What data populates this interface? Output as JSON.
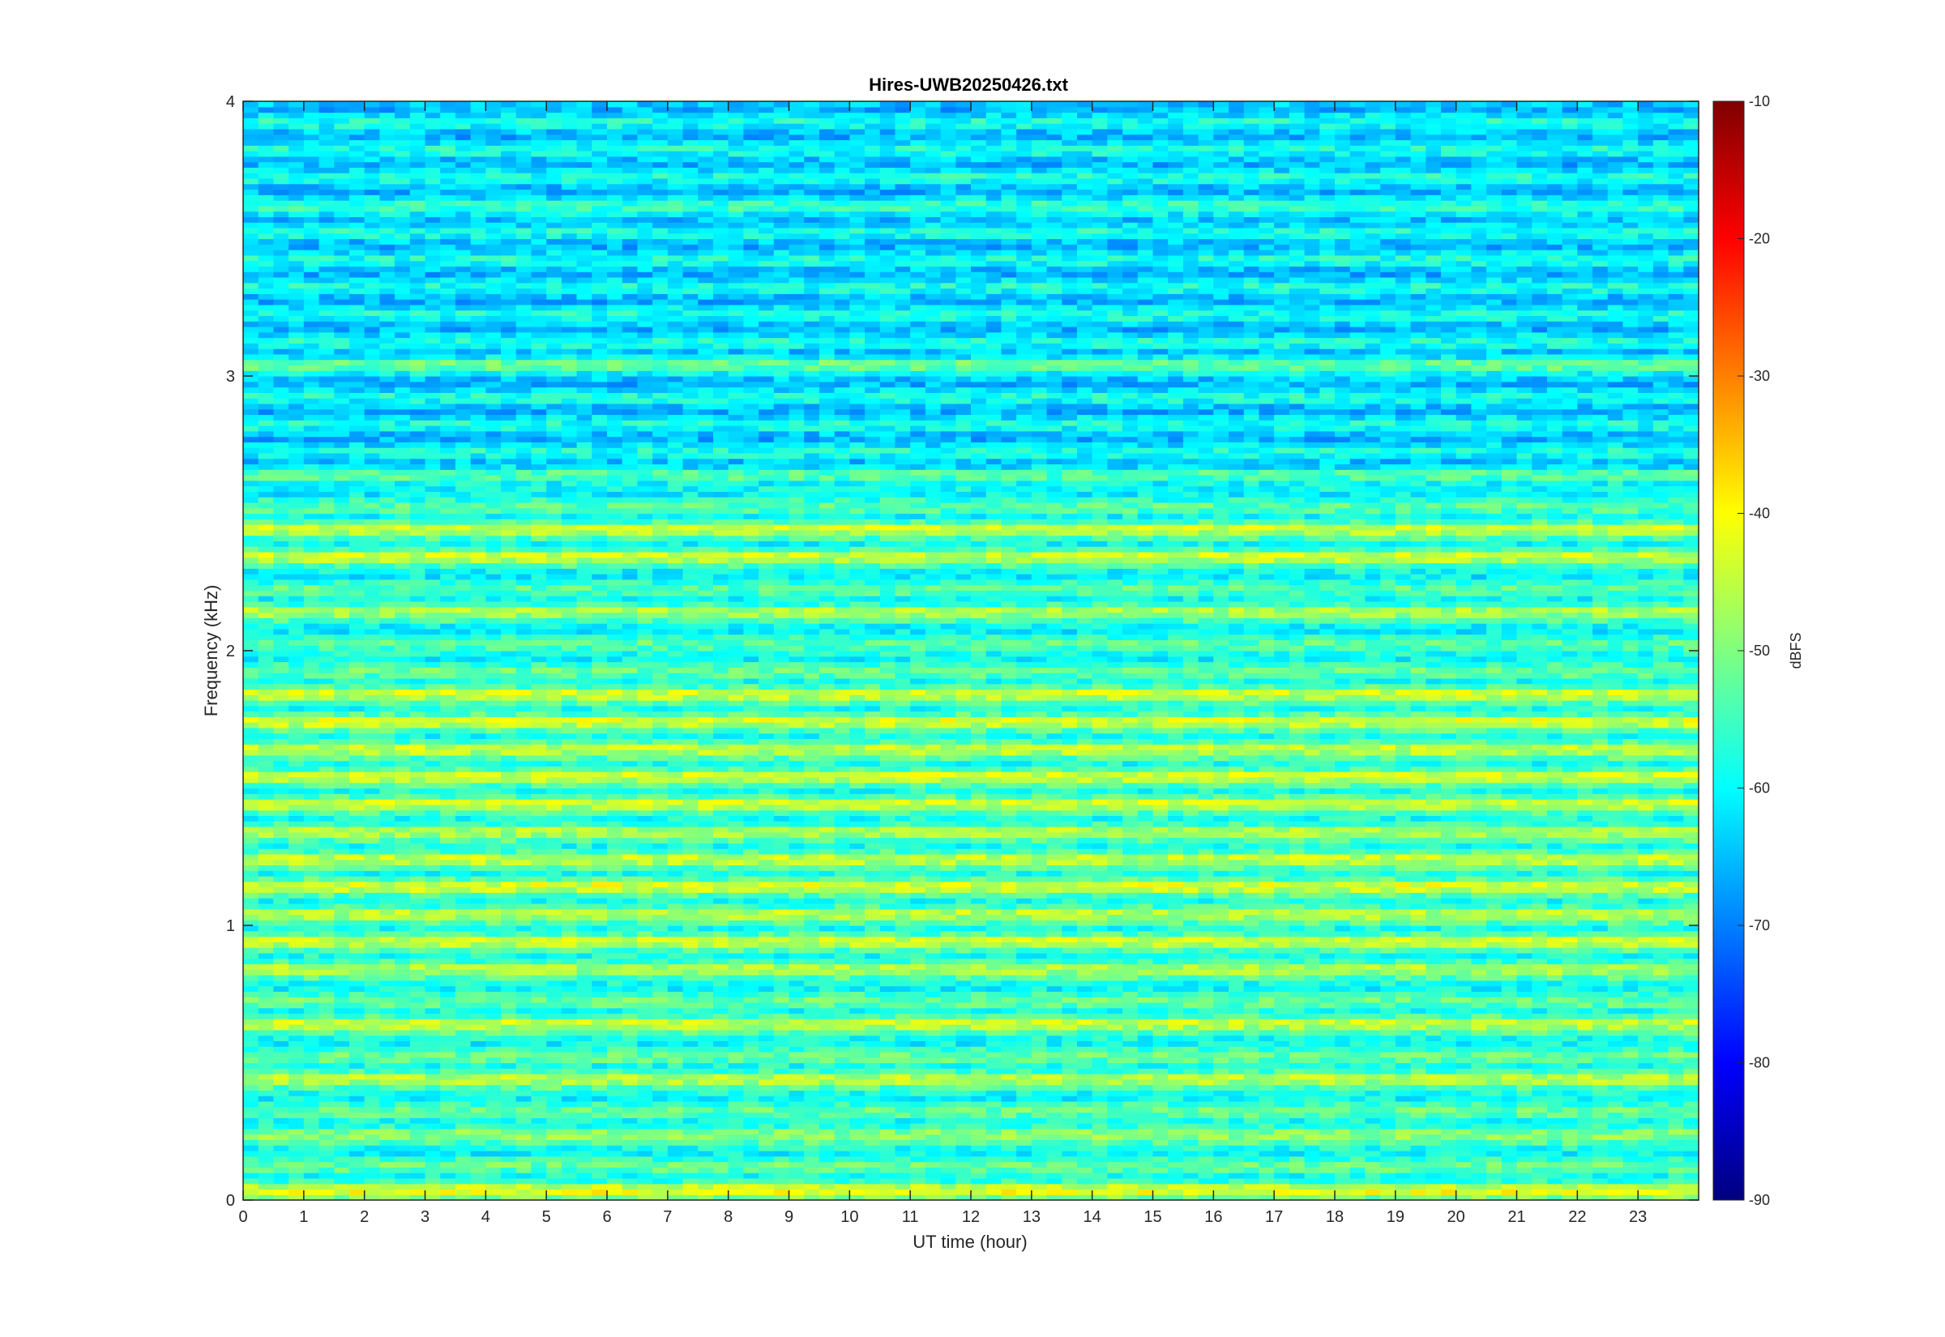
{
  "chart_data": {
    "type": "heatmap",
    "title": "Hires-UWB20250426.txt",
    "xlabel": "UT time (hour)",
    "ylabel": "Frequency (kHz)",
    "xlim": [
      0,
      24
    ],
    "ylim": [
      0,
      4
    ],
    "x_ticks": [
      "0",
      "1",
      "2",
      "3",
      "4",
      "5",
      "6",
      "7",
      "8",
      "9",
      "10",
      "11",
      "12",
      "13",
      "14",
      "15",
      "16",
      "17",
      "18",
      "19",
      "20",
      "21",
      "22",
      "23"
    ],
    "y_ticks": [
      "0",
      "1",
      "2",
      "3",
      "4"
    ],
    "colorbar": {
      "label": "dBFS",
      "range": [
        -90,
        -10
      ],
      "ticks": [
        "-10",
        "-20",
        "-30",
        "-40",
        "-50",
        "-60",
        "-70",
        "-80",
        "-90"
      ],
      "colormap": "jet"
    },
    "frequency_bands_khz": [
      {
        "f": 0.04,
        "level": -42
      },
      {
        "f": 0.25,
        "level": -50
      },
      {
        "f": 0.45,
        "level": -46
      },
      {
        "f": 0.65,
        "level": -45
      },
      {
        "f": 0.85,
        "level": -47
      },
      {
        "f": 0.95,
        "level": -44
      },
      {
        "f": 1.05,
        "level": -46
      },
      {
        "f": 1.15,
        "level": -43
      },
      {
        "f": 1.25,
        "level": -45
      },
      {
        "f": 1.35,
        "level": -47
      },
      {
        "f": 1.45,
        "level": -44
      },
      {
        "f": 1.55,
        "level": -44
      },
      {
        "f": 1.65,
        "level": -45
      },
      {
        "f": 1.75,
        "level": -43
      },
      {
        "f": 1.85,
        "level": -44
      },
      {
        "f": 2.15,
        "level": -47
      },
      {
        "f": 2.35,
        "level": -44
      },
      {
        "f": 2.45,
        "level": -44
      },
      {
        "f": 2.65,
        "level": -54
      },
      {
        "f": 3.05,
        "level": -52
      },
      {
        "f": 3.6,
        "level": -57
      }
    ]
  }
}
